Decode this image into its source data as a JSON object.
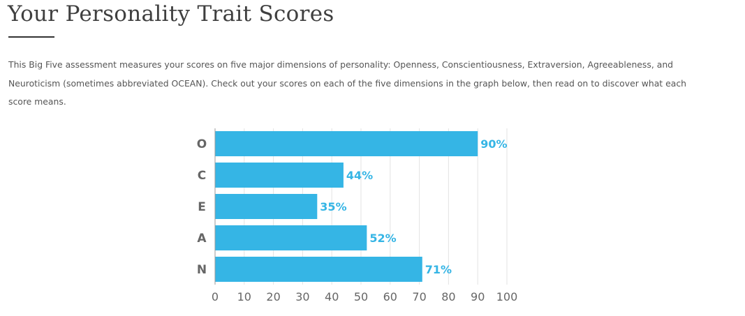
{
  "page": {
    "title": "Your Personality Trait Scores",
    "intro": "This Big Five assessment measures your scores on five major dimensions of personality: Openness, Conscientiousness, Extraversion, Agreeableness, and Neuroticism (sometimes abbreviated OCEAN). Check out your scores on each of the five dimensions in the graph below, then read on to discover what each score means."
  },
  "colors": {
    "bar": "#35b5e5",
    "value_label": "#35b5e5",
    "grid": "#e3e3e3",
    "axis_line": "#9a9a9a"
  },
  "chart_data": {
    "type": "bar",
    "orientation": "horizontal",
    "categories": [
      "O",
      "C",
      "E",
      "A",
      "N"
    ],
    "values": [
      90,
      44,
      35,
      52,
      71
    ],
    "value_labels": [
      "90%",
      "44%",
      "35%",
      "52%",
      "71%"
    ],
    "x_ticks": [
      "0",
      "10",
      "20",
      "30",
      "40",
      "50",
      "60",
      "70",
      "80",
      "90",
      "100"
    ],
    "xlim": [
      0,
      100
    ],
    "grid": true
  }
}
